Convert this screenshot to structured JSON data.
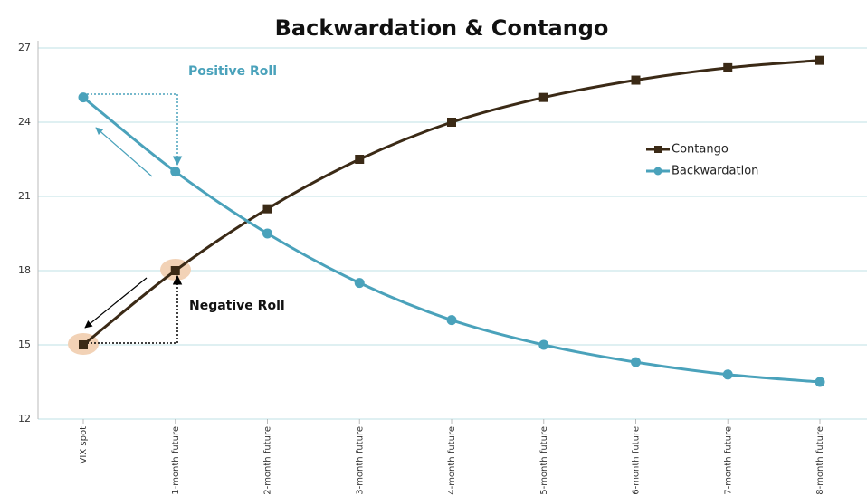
{
  "chart_data": {
    "type": "line",
    "title": "Backwardation & Contango",
    "categories": [
      "VIX spot",
      "1-month future",
      "2-month future",
      "3-month future",
      "4-month future",
      "5-month future",
      "6-month future",
      "7-month future",
      "8-month future"
    ],
    "series": [
      {
        "name": "Contango",
        "color": "#3b2a16",
        "marker": "square",
        "values": [
          15,
          18,
          20.5,
          22.5,
          24,
          25,
          25.7,
          26.2,
          26.5
        ]
      },
      {
        "name": "Backwardation",
        "color": "#4aa2bb",
        "marker": "circle",
        "values": [
          25,
          22,
          19.5,
          17.5,
          16,
          15,
          14.3,
          13.8,
          13.5
        ]
      }
    ],
    "ylim": [
      12,
      27
    ],
    "yticks": [
      12,
      15,
      18,
      21,
      24,
      27
    ],
    "grid": true,
    "annotations": [
      "Positive Roll",
      "Negative Roll"
    ]
  }
}
